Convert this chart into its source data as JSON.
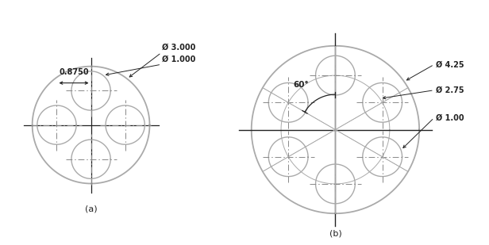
{
  "fig_width": 6.16,
  "fig_height": 3.09,
  "dpi": 100,
  "bg_color": "#ffffff",
  "line_color": "#aaaaaa",
  "dark_line_color": "#222222",
  "cl_color": "#888888",
  "diagram_a": {
    "label": "(a)",
    "outer_r": 1.5,
    "small_r": 0.5,
    "pcd_r": 0.875,
    "n_circles": 4,
    "angles": [
      90,
      180,
      270,
      0
    ],
    "dim_pcd": "0.8750",
    "dim_outer": "Ø 3.000",
    "dim_small": "Ø 1.000"
  },
  "diagram_b": {
    "label": "(b)",
    "outer_r": 2.125,
    "pcd_r": 1.375,
    "small_r": 0.5,
    "n_circles": 6,
    "angles": [
      90,
      30,
      330,
      270,
      210,
      150
    ],
    "dim_outer": "Ø 4.25",
    "dim_pcd": "Ø 2.75",
    "dim_small": "Ø 1.00",
    "angle_label": "60°"
  }
}
